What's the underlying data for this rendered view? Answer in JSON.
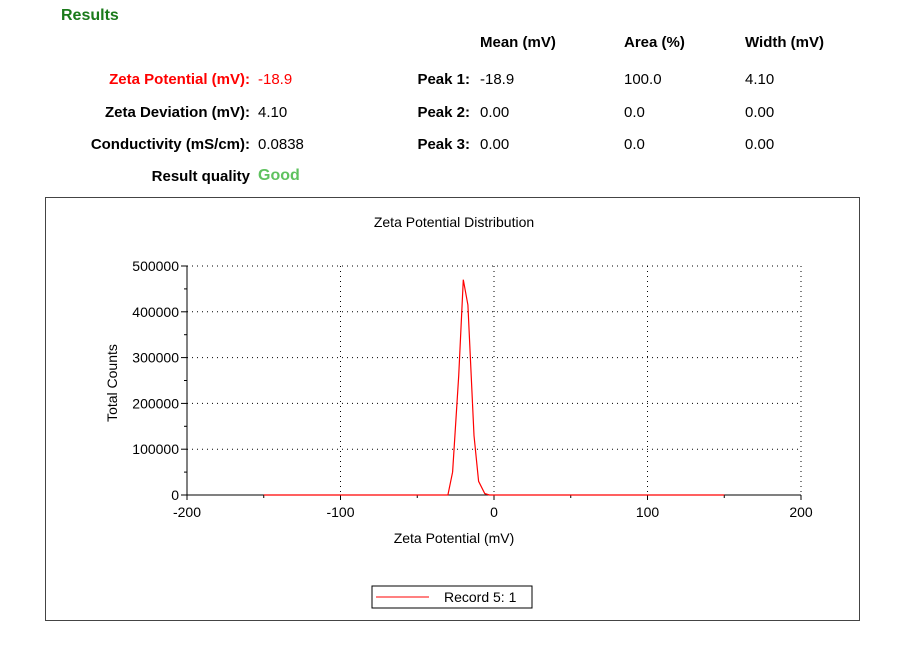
{
  "results": {
    "title": "Results",
    "headers": {
      "mean": "Mean (mV)",
      "area": "Area (%)",
      "width": "Width (mV)"
    },
    "zeta_potential": {
      "label": "Zeta Potential (mV):",
      "value": "-18.9"
    },
    "zeta_deviation": {
      "label": "Zeta Deviation (mV):",
      "value": "4.10"
    },
    "conductivity": {
      "label": "Conductivity (mS/cm):",
      "value": "0.0838"
    },
    "quality": {
      "label": "Result quality",
      "value": "Good"
    },
    "peaks": [
      {
        "label": "Peak 1:",
        "mean": "-18.9",
        "area": "100.0",
        "width": "4.10"
      },
      {
        "label": "Peak 2:",
        "mean": "0.00",
        "area": "0.0",
        "width": "0.00"
      },
      {
        "label": "Peak 3:",
        "mean": "0.00",
        "area": "0.0",
        "width": "0.00"
      }
    ]
  },
  "colors": {
    "title": "#1a7a1a",
    "zeta": "#ff0000",
    "good": "#5fc25f",
    "series": "#ff0000"
  },
  "chart_data": {
    "type": "line",
    "title": "Zeta Potential Distribution",
    "xlabel": "Zeta Potential (mV)",
    "ylabel": "Total Counts",
    "xlim": [
      -200,
      200
    ],
    "ylim": [
      0,
      500000
    ],
    "xticks": [
      -200,
      -100,
      0,
      100,
      200
    ],
    "yticks": [
      0,
      100000,
      200000,
      300000,
      400000,
      500000
    ],
    "grid": true,
    "legend_position": "bottom-center",
    "series": [
      {
        "name": "Record 5:  1",
        "color": "#ff0000",
        "x": [
          -150,
          -100,
          -50,
          -30,
          -27,
          -23,
          -20,
          -17,
          -13,
          -10,
          -6,
          -3,
          0,
          50,
          100,
          150
        ],
        "y": [
          0,
          0,
          0,
          0,
          50000,
          260000,
          470000,
          415000,
          130000,
          30000,
          3000,
          0,
          0,
          0,
          0,
          0
        ]
      }
    ]
  }
}
